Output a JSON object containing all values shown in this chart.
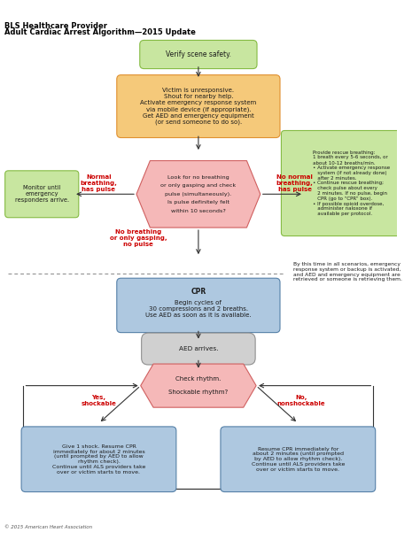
{
  "title_line1": "BLS Healthcare Provider",
  "title_line2": "Adult Cardiac Arrest Algorithm—2015 Update",
  "copyright": "© 2015 American Heart Association",
  "colors": {
    "green_box": "#c8e6a0",
    "green_box_edge": "#85bb43",
    "orange_box": "#f5c97a",
    "orange_box_edge": "#e09030",
    "pink_hex": "#f5b8b8",
    "pink_hex_edge": "#d06060",
    "blue_box": "#aec8e0",
    "blue_box_edge": "#5580a8",
    "gray_box": "#d0d0d0",
    "gray_box_edge": "#909090",
    "red_text": "#cc0000",
    "dark_text": "#1a1a1a",
    "arrow_color": "#333333",
    "dash_color": "#888888"
  },
  "verify_text": "Verify scene safety.",
  "victim_text": "Victim is unresponsive.\nShout for nearby help.\nActivate emergency response system\nvia mobile device (if appropriate).\nGet AED and emergency equipment\n(or send someone to do so).",
  "look_text": "Look for no breathing\nor only gasping and check\npulse (simultaneously).\nIs pulse definitely felt\nwithin 10 seconds?",
  "look_bold_word": "definitely",
  "monitor_text": "Monitor until\nemergency\nresponders arrive.",
  "rescue_text": "Provide rescue breathing:\n1 breath every 5-6 seconds, or\nabout 10-12 breaths/min.\n• Activate emergency response\n   system (if not already done)\n   after 2 minutes.\n• Continue rescue breathing;\n   check pulse about every\n   2 minutes. If no pulse, begin\n   CPR (go to “CPR” box).\n• If possible opioid overdose,\n   administer naloxone if\n   available per protocol.",
  "cpr_title": "CPR",
  "cpr_text": "Begin cycles of\n30 compressions and 2 breaths.\nUse AED as soon as it is available.",
  "aed_text": "AED arrives.",
  "rhythm_text": "Check rhythm.\nShockable rhythm?",
  "shock_text": "Give 1 shock. Resume CPR\nimmediately for about 2 minutes\n(until prompted by AED to allow\nrhythm check).\nContinue until ALS providers take\nover or victim starts to move.",
  "noshock_text": "Resume CPR immediately for\nabout 2 minutes (until prompted\nby AED to allow rhythm check).\nContinue until ALS providers take\nover or victim starts to move.",
  "label_normal": "Normal\nbreathing,\nhas pulse",
  "label_nonormal": "No normal\nbreathing,\nhas pulse",
  "label_nopulse": "No breathing\nor only gasping,\nno pulse",
  "label_yes": "Yes,\nshockable",
  "label_no": "No,\nnonshockable",
  "side_note": "By this time in all scenarios, emergency\nresponse system or backup is activated,\nand AED and emergency equipment are\nretrieved or someone is retrieving them."
}
